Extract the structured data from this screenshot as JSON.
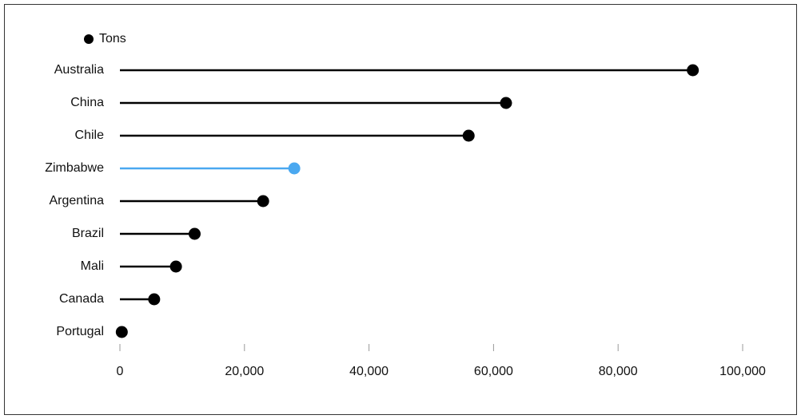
{
  "chart_data": {
    "type": "lollipop",
    "categories": [
      "Australia",
      "China",
      "Chile",
      "Zimbabwe",
      "Argentina",
      "Brazil",
      "Mali",
      "Canada",
      "Portugal"
    ],
    "series": [
      {
        "name": "Tons",
        "color": "#000000",
        "colors": [
          "#000000",
          "#000000",
          "#000000",
          "#4aa8f0",
          "#000000",
          "#000000",
          "#000000",
          "#000000",
          "#000000"
        ],
        "values": [
          92000,
          62000,
          56000,
          28000,
          23000,
          12000,
          9000,
          5500,
          300
        ]
      }
    ],
    "xlim": [
      0,
      100000
    ],
    "xticks": [
      0,
      {
        "value": 20000,
        "label": "20,000"
      },
      {
        "value": 40000,
        "label": "40,000"
      },
      {
        "value": 60000,
        "label": "60,000"
      },
      {
        "value": 80000,
        "label": "80,000"
      },
      {
        "value": 100000,
        "label": "100,000"
      }
    ]
  }
}
